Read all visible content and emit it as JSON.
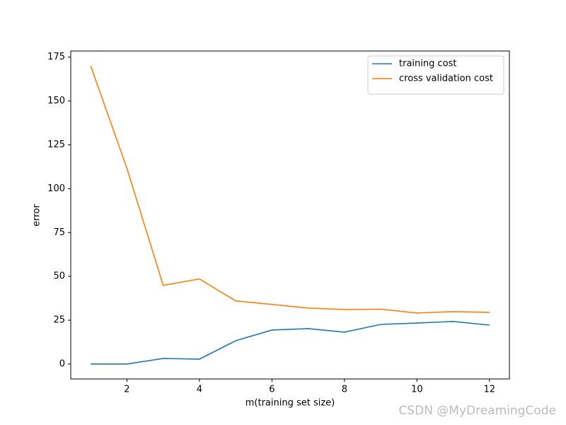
{
  "chart_data": {
    "type": "line",
    "xlabel": "m(training set size)",
    "ylabel": "error",
    "x": [
      1,
      2,
      3,
      4,
      5,
      6,
      7,
      8,
      9,
      10,
      11,
      12
    ],
    "series": [
      {
        "name": "training cost",
        "color": "#1f77b4",
        "values": [
          0,
          0,
          3.2,
          2.8,
          13.3,
          19.4,
          20.2,
          18.2,
          22.6,
          23.4,
          24.3,
          22.2
        ]
      },
      {
        "name": "cross validation cost",
        "color": "#ff7f0e",
        "values": [
          170,
          111.6,
          44.9,
          48.5,
          36.0,
          34.0,
          31.9,
          31.1,
          31.3,
          29.1,
          29.9,
          29.5
        ]
      }
    ],
    "xlim": [
      0.45,
      12.55
    ],
    "ylim": [
      -8.5,
      178.5
    ],
    "xticks": [
      2,
      4,
      6,
      8,
      10,
      12
    ],
    "yticks": [
      0,
      25,
      50,
      75,
      100,
      125,
      150,
      175
    ],
    "legend": "upper right",
    "watermark": "CSDN @MyDreamingCode"
  }
}
